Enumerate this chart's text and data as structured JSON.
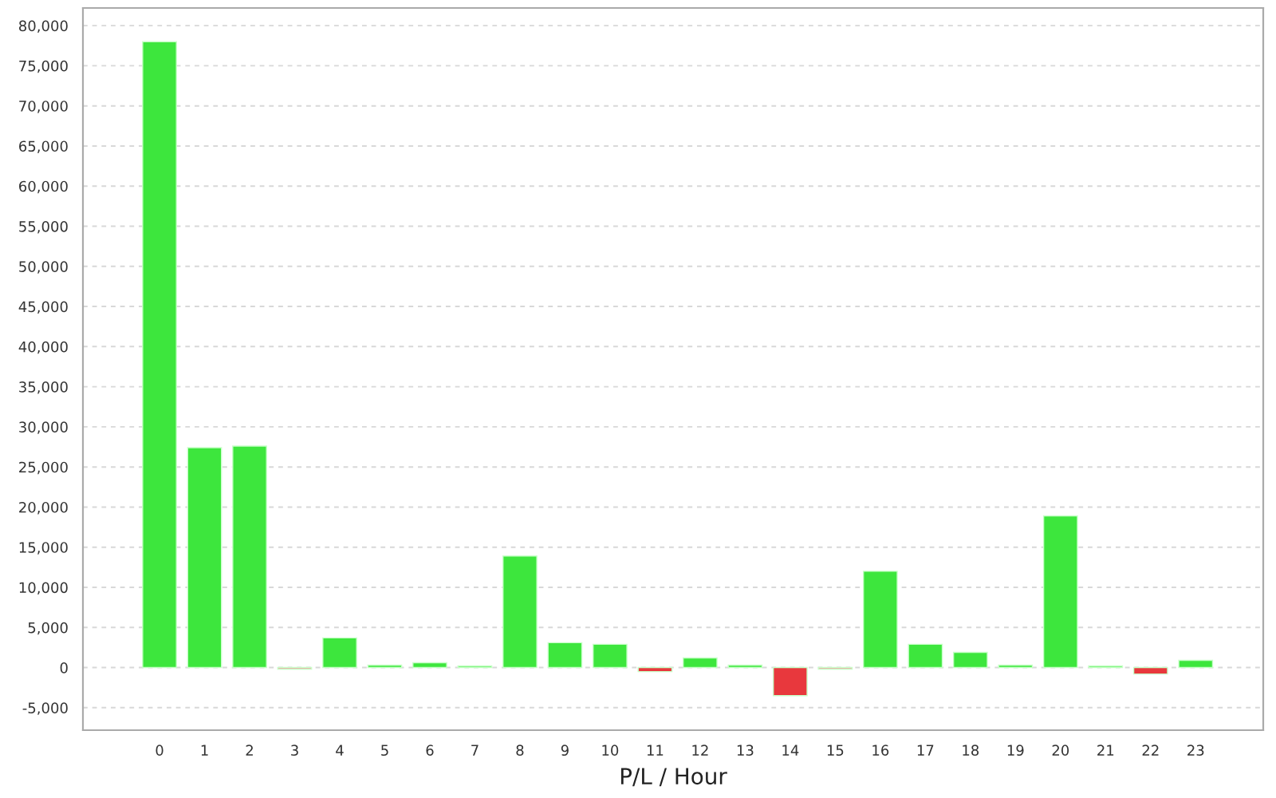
{
  "chart_data": {
    "type": "bar",
    "xlabel": "P/L / Hour",
    "categories": [
      "0",
      "1",
      "2",
      "3",
      "4",
      "5",
      "6",
      "7",
      "8",
      "9",
      "10",
      "11",
      "12",
      "13",
      "14",
      "15",
      "16",
      "17",
      "18",
      "19",
      "20",
      "21",
      "22",
      "23"
    ],
    "values": [
      78000,
      27400,
      27600,
      -200,
      3700,
      300,
      600,
      200,
      13900,
      3100,
      2900,
      -500,
      1200,
      300,
      -3500,
      -200,
      12000,
      2900,
      1900,
      300,
      18900,
      200,
      -800,
      900
    ],
    "colors": [
      "#3de63d",
      "#3de63d",
      "#3de63d",
      "#f0a0a0",
      "#3de63d",
      "#3de63d",
      "#3de63d",
      "#3de63d",
      "#3de63d",
      "#3de63d",
      "#3de63d",
      "#e8383d",
      "#3de63d",
      "#3de63d",
      "#e8383d",
      "#f0a0a0",
      "#3de63d",
      "#3de63d",
      "#3de63d",
      "#3de63d",
      "#3de63d",
      "#3de63d",
      "#e8383d",
      "#3de63d"
    ],
    "ylim": [
      -7800,
      82200
    ],
    "yticks": [
      {
        "value": -5000,
        "label": "-5,000"
      },
      0,
      {
        "value": 5000,
        "label": "5,000"
      },
      {
        "value": 10000,
        "label": "10,000"
      },
      {
        "value": 15000,
        "label": "15,000"
      },
      {
        "value": 20000,
        "label": "20,000"
      },
      {
        "value": 25000,
        "label": "25,000"
      },
      {
        "value": 30000,
        "label": "30,000"
      },
      {
        "value": 35000,
        "label": "35,000"
      },
      {
        "value": 40000,
        "label": "40,000"
      },
      {
        "value": 45000,
        "label": "45,000"
      },
      {
        "value": 50000,
        "label": "50,000"
      },
      {
        "value": 55000,
        "label": "55,000"
      },
      {
        "value": 60000,
        "label": "60,000"
      },
      {
        "value": 65000,
        "label": "65,000"
      },
      {
        "value": 70000,
        "label": "70,000"
      },
      {
        "value": 75000,
        "label": "75,000"
      },
      {
        "value": 80000,
        "label": "80,000"
      }
    ],
    "grid": "y"
  }
}
